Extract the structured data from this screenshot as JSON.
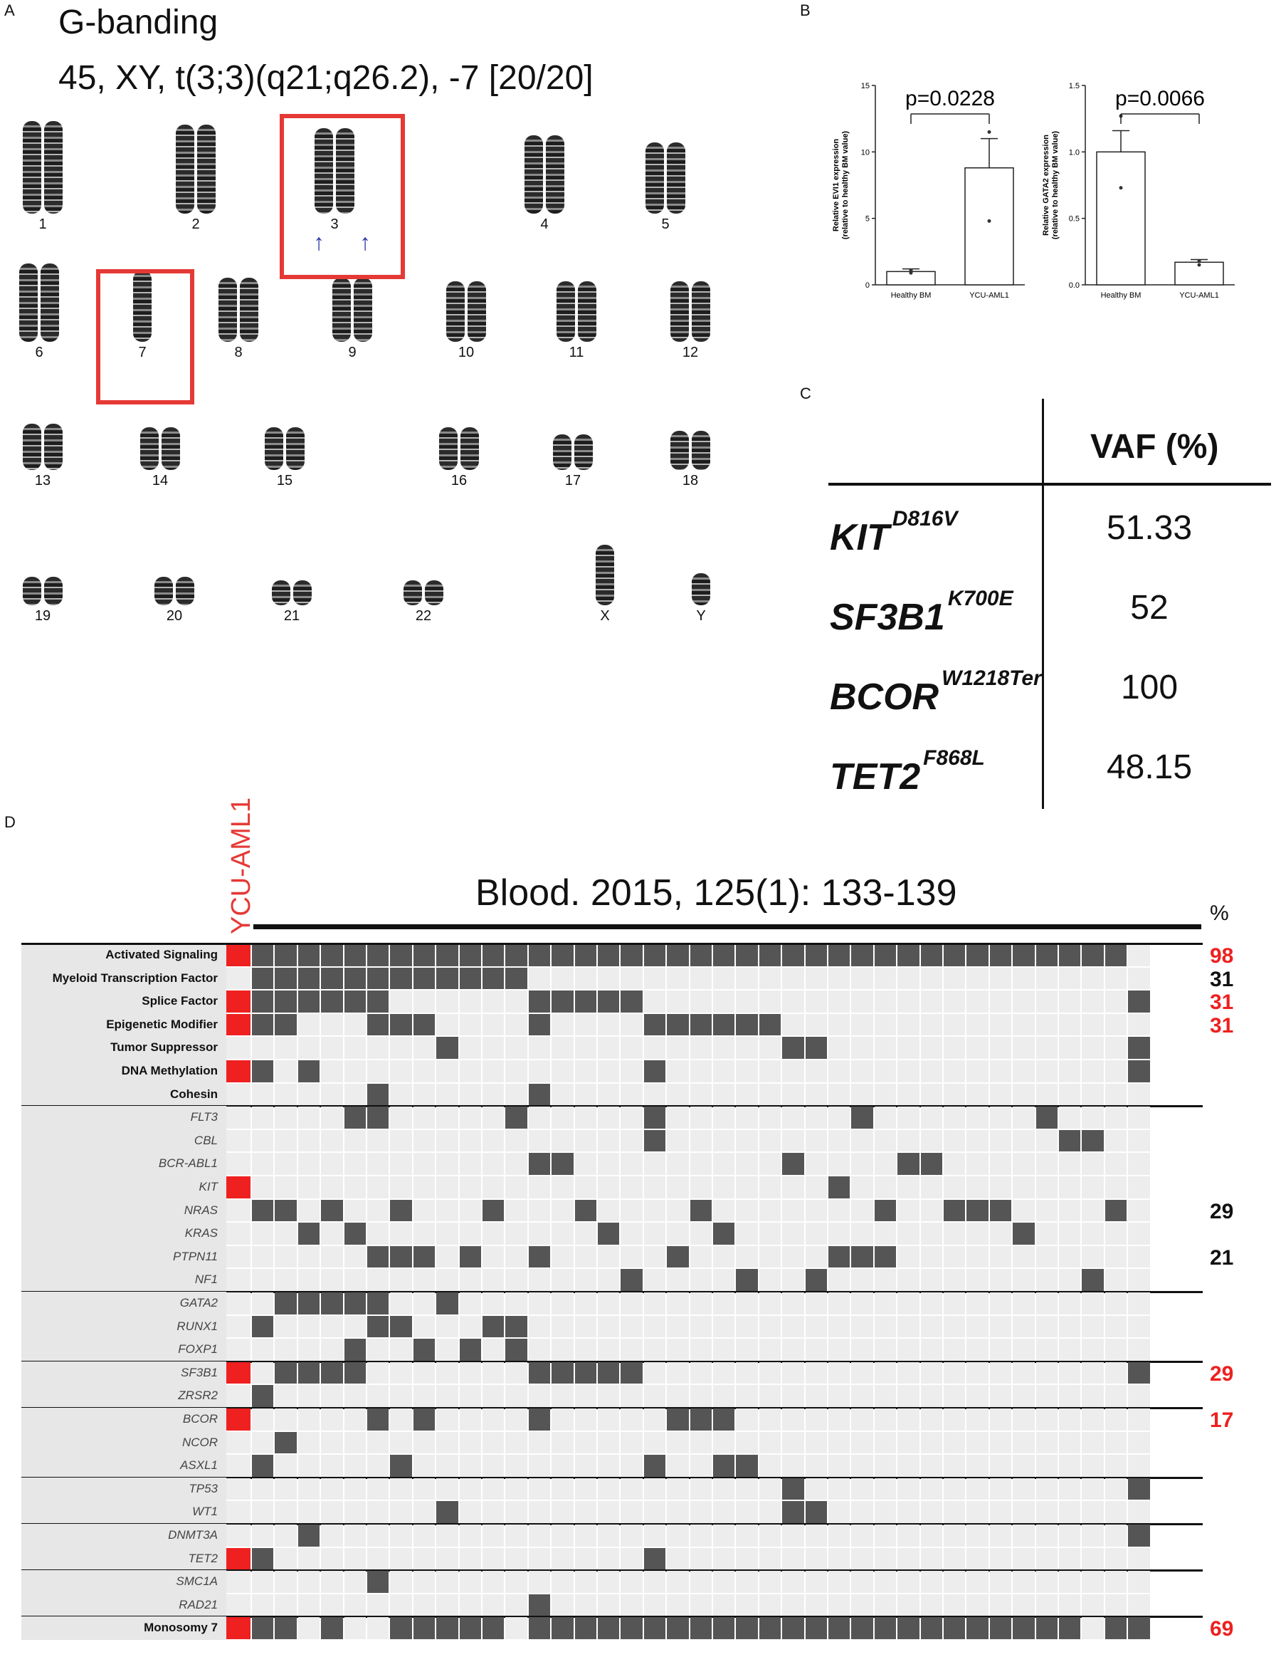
{
  "panels": {
    "a": "A",
    "b": "B",
    "c": "C",
    "d": "D"
  },
  "karyotype": {
    "title": "G-banding",
    "formula": "45, XY, t(3;3)(q21;q26.2), -7 [20/20]",
    "chromosomes": [
      {
        "label": "1",
        "n": 2
      },
      {
        "label": "2",
        "n": 2
      },
      {
        "label": "3",
        "n": 2
      },
      {
        "label": "4",
        "n": 2
      },
      {
        "label": "5",
        "n": 2
      },
      {
        "label": "6",
        "n": 2
      },
      {
        "label": "7",
        "n": 1
      },
      {
        "label": "8",
        "n": 2
      },
      {
        "label": "9",
        "n": 2
      },
      {
        "label": "10",
        "n": 2
      },
      {
        "label": "11",
        "n": 2
      },
      {
        "label": "12",
        "n": 2
      },
      {
        "label": "13",
        "n": 2
      },
      {
        "label": "14",
        "n": 2
      },
      {
        "label": "15",
        "n": 2
      },
      {
        "label": "16",
        "n": 2
      },
      {
        "label": "17",
        "n": 2
      },
      {
        "label": "18",
        "n": 2
      },
      {
        "label": "19",
        "n": 2
      },
      {
        "label": "20",
        "n": 2
      },
      {
        "label": "21",
        "n": 2
      },
      {
        "label": "22",
        "n": 2
      },
      {
        "label": "X",
        "n": 1
      },
      {
        "label": "Y",
        "n": 1
      }
    ],
    "highlight_color": "#e53935",
    "arrow_color": "#2d3aa6"
  },
  "chart_data": [
    {
      "type": "bar",
      "categories": [
        "Healthy BM",
        "YCU-AML1"
      ],
      "values": [
        1.0,
        8.8
      ],
      "errors": [
        0.2,
        2.2
      ],
      "points": [
        [
          0.9,
          1.1
        ],
        [
          11.5,
          4.8
        ]
      ],
      "ylabel": "Relative EVI1 expression (relative to healthy BM value)",
      "ylim": [
        0,
        15
      ],
      "yticks": [
        "0",
        "5",
        "10",
        "15"
      ],
      "annotation": "p=0.0228"
    },
    {
      "type": "bar",
      "categories": [
        "Healthy BM",
        "YCU-AML1"
      ],
      "values": [
        1.0,
        0.17
      ],
      "errors": [
        0.16,
        0.02
      ],
      "points": [
        [
          1.27,
          0.73
        ],
        [
          0.18,
          0.15
        ]
      ],
      "ylabel": "Relative GATA2 expression (relative to healthy BM value)",
      "ylim": [
        0,
        1.5
      ],
      "yticks": [
        "0.0",
        "0.5",
        "1.0",
        "1.5"
      ],
      "annotation": "p=0.0066"
    }
  ],
  "vaf_table": {
    "header": "VAF (%)",
    "rows": [
      {
        "gene": "KIT",
        "mutation": "D816V",
        "vaf": "51.33"
      },
      {
        "gene": "SF3B1",
        "mutation": "K700E",
        "vaf": "52"
      },
      {
        "gene": "BCOR",
        "mutation": "W1218Ter",
        "vaf": "100"
      },
      {
        "gene": "TET2",
        "mutation": "F868L",
        "vaf": "48.15"
      }
    ]
  },
  "oncoprint": {
    "sample": "YCU-AML1",
    "reference": "Blood. 2015, 125(1): 133-139",
    "pct_header": "%",
    "n_columns": 39,
    "colors": {
      "mutated": "#555555",
      "empty": "#ededed",
      "sample": "#ee2020",
      "category_bg": "#e7e7e7",
      "pct_red": "#ee2020",
      "pct_black": "#111111"
    },
    "rows": [
      {
        "label": "Activated Signaling",
        "style": "bold",
        "sample": true,
        "cells": [
          1,
          2,
          3,
          4,
          5,
          6,
          7,
          8,
          9,
          10,
          11,
          12,
          13,
          14,
          15,
          16,
          17,
          18,
          19,
          20,
          21,
          22,
          23,
          24,
          25,
          26,
          27,
          28,
          29,
          30,
          31,
          32,
          33,
          34,
          35,
          36,
          37,
          38
        ],
        "pct": "98",
        "pct_color": "red"
      },
      {
        "label": "Myeloid Transcription Factor",
        "style": "bold",
        "sample": false,
        "cells": [
          1,
          2,
          3,
          4,
          5,
          6,
          7,
          8,
          9,
          10,
          11,
          12
        ],
        "pct": "31",
        "pct_color": "black"
      },
      {
        "label": "Splice Factor",
        "style": "bold",
        "sample": true,
        "cells": [
          1,
          2,
          3,
          4,
          5,
          6,
          13,
          14,
          15,
          16,
          17,
          39
        ],
        "pct": "31",
        "pct_color": "red"
      },
      {
        "label": "Epigenetic Modifier",
        "style": "bold",
        "sample": true,
        "cells": [
          1,
          2,
          6,
          7,
          8,
          13,
          18,
          19,
          20,
          21,
          22,
          23
        ],
        "pct": "31",
        "pct_color": "red"
      },
      {
        "label": "Tumor Suppressor",
        "style": "bold",
        "sample": false,
        "cells": [
          9,
          24,
          25,
          39
        ],
        "pct": "",
        "pct_color": "black"
      },
      {
        "label": "DNA Methylation",
        "style": "bold",
        "sample": true,
        "cells": [
          1,
          3,
          18,
          39
        ],
        "pct": "",
        "pct_color": "black"
      },
      {
        "label": "Cohesin",
        "style": "bold",
        "sample": false,
        "cells": [
          6,
          13
        ],
        "pct": "",
        "pct_color": "black",
        "divider_after": true
      },
      {
        "label": "FLT3",
        "style": "ital",
        "sample": false,
        "cells": [
          5,
          6,
          12,
          18,
          27,
          35
        ],
        "pct": "",
        "pct_color": "black"
      },
      {
        "label": "CBL",
        "style": "ital",
        "sample": false,
        "cells": [
          18,
          36,
          37
        ],
        "pct": "",
        "pct_color": "black"
      },
      {
        "label": "BCR-ABL1",
        "style": "ital",
        "sample": false,
        "cells": [
          13,
          14,
          24,
          29,
          30
        ],
        "pct": "",
        "pct_color": "black"
      },
      {
        "label": "KIT",
        "style": "ital",
        "sample": true,
        "cells": [
          26
        ],
        "pct": "",
        "pct_color": "black"
      },
      {
        "label": "NRAS",
        "style": "ital",
        "sample": false,
        "cells": [
          1,
          2,
          4,
          7,
          11,
          15,
          20,
          28,
          31,
          32,
          33,
          38
        ],
        "pct": "29",
        "pct_color": "black"
      },
      {
        "label": "KRAS",
        "style": "ital",
        "sample": false,
        "cells": [
          3,
          5,
          16,
          21,
          34
        ],
        "pct": "",
        "pct_color": "black"
      },
      {
        "label": "PTPN11",
        "style": "ital",
        "sample": false,
        "cells": [
          6,
          7,
          8,
          10,
          13,
          19,
          26,
          27,
          28
        ],
        "pct": "21",
        "pct_color": "black"
      },
      {
        "label": "NF1",
        "style": "ital",
        "sample": false,
        "cells": [
          17,
          22,
          25,
          37
        ],
        "pct": "",
        "pct_color": "black",
        "divider_after": true
      },
      {
        "label": "GATA2",
        "style": "ital",
        "sample": false,
        "cells": [
          2,
          3,
          4,
          5,
          6,
          9
        ],
        "pct": "",
        "pct_color": "black"
      },
      {
        "label": "RUNX1",
        "style": "ital",
        "sample": false,
        "cells": [
          1,
          6,
          7,
          11,
          12
        ],
        "pct": "",
        "pct_color": "black"
      },
      {
        "label": "FOXP1",
        "style": "ital",
        "sample": false,
        "cells": [
          5,
          8,
          10,
          12
        ],
        "pct": "",
        "pct_color": "black",
        "divider_after": true
      },
      {
        "label": "SF3B1",
        "style": "ital",
        "sample": true,
        "cells": [
          2,
          3,
          4,
          5,
          13,
          14,
          15,
          16,
          17,
          39
        ],
        "pct": "29",
        "pct_color": "red"
      },
      {
        "label": "ZRSR2",
        "style": "ital",
        "sample": false,
        "cells": [
          1
        ],
        "pct": "",
        "pct_color": "black",
        "divider_after": true
      },
      {
        "label": "BCOR",
        "style": "ital",
        "sample": true,
        "cells": [
          6,
          8,
          13,
          19,
          20,
          21
        ],
        "pct": "17",
        "pct_color": "red"
      },
      {
        "label": "NCOR",
        "style": "ital",
        "sample": false,
        "cells": [
          2
        ],
        "pct": "",
        "pct_color": "black"
      },
      {
        "label": "ASXL1",
        "style": "ital",
        "sample": false,
        "cells": [
          1,
          7,
          18,
          21,
          22
        ],
        "pct": "",
        "pct_color": "black",
        "divider_after": true
      },
      {
        "label": "TP53",
        "style": "ital",
        "sample": false,
        "cells": [
          24,
          39
        ],
        "pct": "",
        "pct_color": "black"
      },
      {
        "label": "WT1",
        "style": "ital",
        "sample": false,
        "cells": [
          9,
          24,
          25
        ],
        "pct": "",
        "pct_color": "black",
        "divider_after": true
      },
      {
        "label": "DNMT3A",
        "style": "ital",
        "sample": false,
        "cells": [
          3,
          39
        ],
        "pct": "",
        "pct_color": "black"
      },
      {
        "label": "TET2",
        "style": "ital",
        "sample": true,
        "cells": [
          1,
          18
        ],
        "pct": "",
        "pct_color": "black",
        "divider_after": true
      },
      {
        "label": "SMC1A",
        "style": "ital",
        "sample": false,
        "cells": [
          6
        ],
        "pct": "",
        "pct_color": "black"
      },
      {
        "label": "RAD21",
        "style": "ital",
        "sample": false,
        "cells": [
          13
        ],
        "pct": "",
        "pct_color": "black",
        "divider_after": true
      },
      {
        "label": "Monosomy 7",
        "style": "bold",
        "sample": true,
        "cells": [
          1,
          2,
          4,
          7,
          8,
          9,
          10,
          11,
          13,
          14,
          15,
          16,
          17,
          18,
          19,
          20,
          21,
          22,
          23,
          24,
          25,
          26,
          27,
          28,
          29,
          30,
          31,
          32,
          33,
          34,
          35,
          36,
          38,
          39
        ],
        "pct": "69",
        "pct_color": "red"
      }
    ]
  }
}
